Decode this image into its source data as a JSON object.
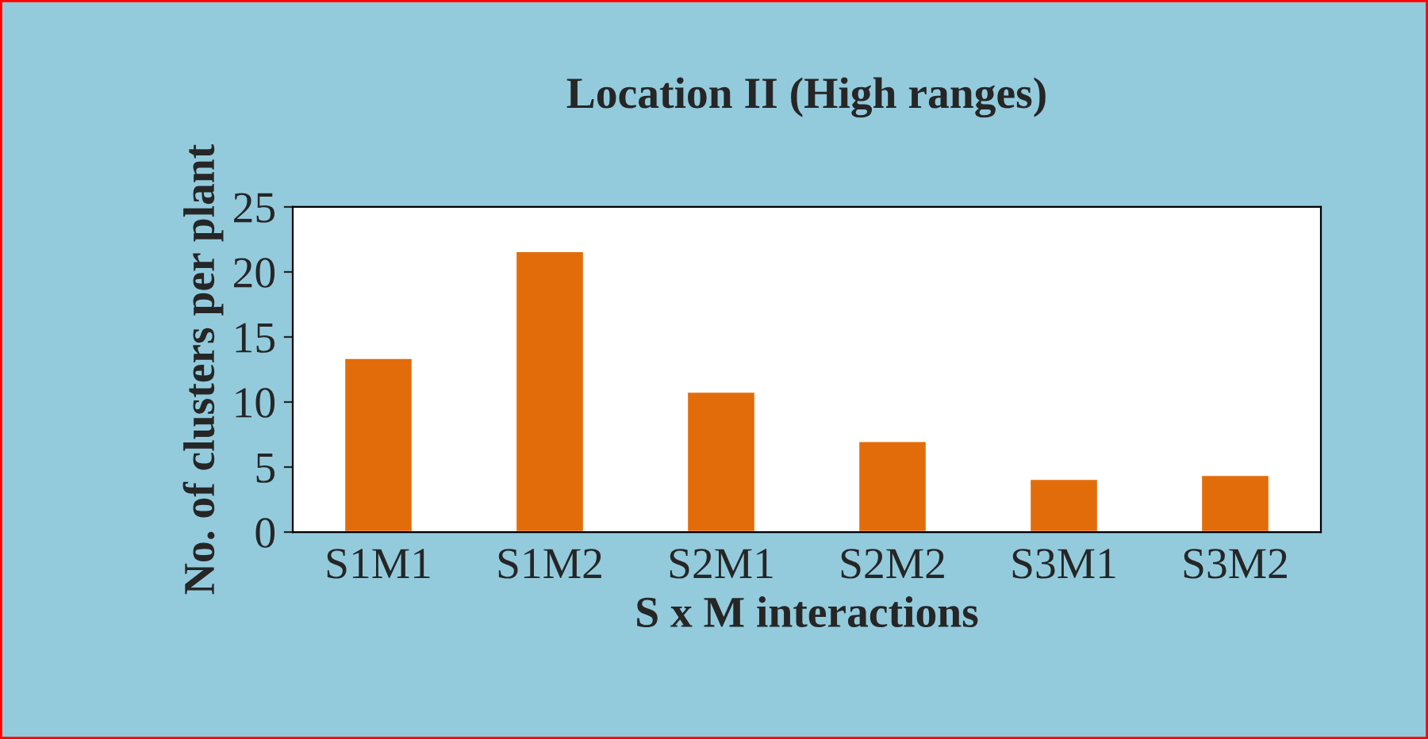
{
  "chart_data": {
    "type": "bar",
    "title": "Location II (High ranges)",
    "xlabel": "S x M interactions",
    "ylabel": "No. of clusters per plant",
    "categories": [
      "S1M1",
      "S1M2",
      "S2M1",
      "S2M2",
      "S3M1",
      "S3M2"
    ],
    "values": [
      13.4,
      21.6,
      10.8,
      7.0,
      4.1,
      4.4
    ],
    "color": "#e36c0a",
    "ylim": [
      0,
      25
    ],
    "yticks": [
      0,
      5,
      10,
      15,
      20,
      25
    ],
    "grid": false,
    "legend": false
  }
}
